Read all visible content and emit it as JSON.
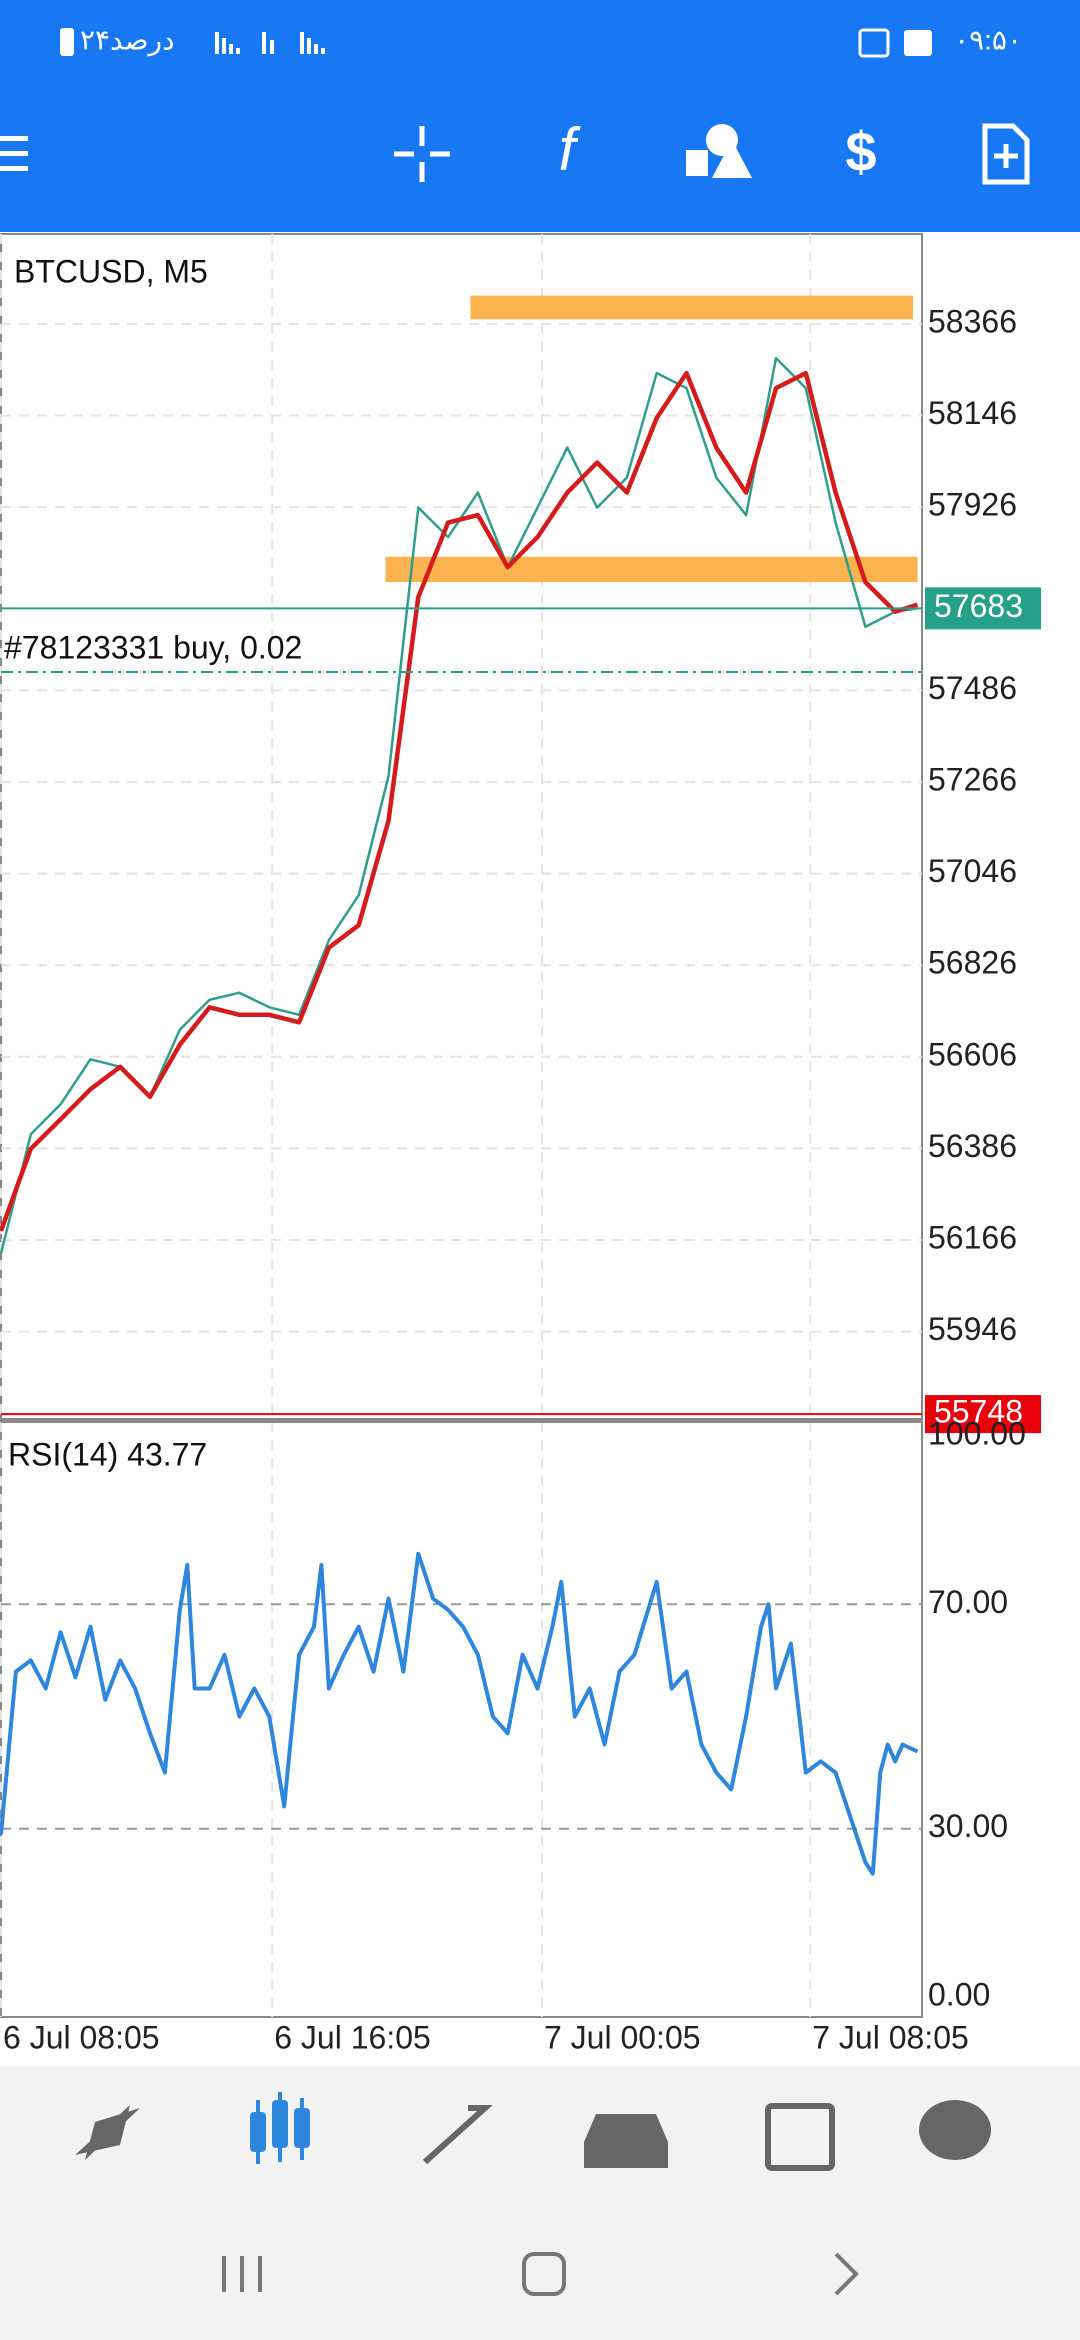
{
  "status_bar": {
    "time": "۰۹:۵۰",
    "battery": "۲۴درصد"
  },
  "toolbar": {
    "function_icon": "f"
  },
  "chart_data": [
    {
      "type": "line",
      "title": "BTCUSD, M5",
      "xlim": [
        0,
        30.9
      ],
      "xticks": [
        {
          "value": 0,
          "label": "6 Jul 08:05"
        },
        {
          "value": 9.1,
          "label": "6 Jul 16:05"
        },
        {
          "value": 18.15,
          "label": "7 Jul 00:05"
        },
        {
          "value": 27.15,
          "label": "7 Jul 08:05"
        }
      ],
      "ylim": [
        55741,
        58582
      ],
      "yticks": [
        58366,
        58146,
        57926,
        57486,
        57266,
        57046,
        56826,
        56606,
        56386,
        56166,
        55946
      ],
      "grid": true,
      "x": [
        0,
        1,
        2,
        3,
        4,
        5,
        6,
        7,
        8,
        9,
        10,
        11,
        12,
        13,
        14,
        15,
        16,
        17,
        18,
        19,
        20,
        21,
        22,
        23,
        24,
        25,
        26,
        27,
        28,
        29,
        30,
        30.75
      ],
      "series": [
        {
          "color": "#2f9e8c",
          "values": [
            56134,
            56420,
            56492,
            56600,
            56582,
            56510,
            56671,
            56743,
            56760,
            56725,
            56707,
            56886,
            56994,
            57280,
            57925,
            57854,
            57961,
            57782,
            57925,
            58069,
            57925,
            57997,
            58248,
            58212,
            57997,
            57907,
            58284,
            58212,
            57889,
            57639,
            57675,
            57683
          ]
        },
        {
          "color": "#d41c1c",
          "values": [
            56188,
            56385,
            56456,
            56528,
            56582,
            56510,
            56635,
            56725,
            56707,
            56707,
            56689,
            56868,
            56922,
            57173,
            57710,
            57889,
            57907,
            57782,
            57854,
            57961,
            58033,
            57961,
            58140,
            58248,
            58069,
            57961,
            58212,
            58248,
            57961,
            57746,
            57675,
            57692
          ]
        }
      ],
      "zones": [
        {
          "from": 15.75,
          "to": 30.6,
          "ylim": [
            58377,
            58434
          ],
          "color": "#fbb34f"
        },
        {
          "from": 12.9,
          "to": 30.75,
          "ylim": [
            57746,
            57807
          ],
          "color": "#fbb34f"
        }
      ],
      "current_price": 57683,
      "current_color": "#27a08a",
      "order": {
        "label": "#78123331 buy, 0.02",
        "price": 57530
      },
      "low_level": {
        "value": 55748,
        "color": "#e8000b"
      }
    },
    {
      "type": "line",
      "title": "RSI(14) 43.77",
      "xlim": [
        0,
        30.9
      ],
      "ylim": [
        0,
        100
      ],
      "yticks": [
        {
          "value": 100,
          "label": "100.00"
        },
        {
          "value": 70,
          "label": "70.00"
        },
        {
          "value": 30,
          "label": "30.00"
        },
        {
          "value": 0,
          "label": "0.00"
        }
      ],
      "x": [
        0,
        0.5,
        1,
        1.5,
        2,
        2.5,
        3,
        3.5,
        4,
        4.5,
        5,
        5.5,
        6,
        6.25,
        6.5,
        7,
        7.5,
        8,
        8.5,
        9,
        9.5,
        10,
        10.5,
        10.75,
        11,
        11.5,
        12,
        12.5,
        13,
        13.5,
        14,
        14.5,
        15,
        15.5,
        16,
        16.5,
        17,
        17.5,
        18,
        18.5,
        18.8,
        19.25,
        19.75,
        20.25,
        20.75,
        21.25,
        22,
        22.5,
        23,
        23.5,
        24,
        24.5,
        25,
        25.5,
        25.75,
        26,
        26.5,
        27,
        27.5,
        28,
        28.5,
        29,
        29.25,
        29.5,
        29.75,
        30,
        30.25,
        30.75
      ],
      "series": [
        {
          "color": "#2f86dd",
          "values": [
            29,
            58,
            60,
            55,
            65,
            57,
            66,
            53,
            60,
            55,
            47,
            40,
            69,
            77,
            55,
            55,
            61,
            50,
            55,
            50,
            34,
            61,
            66,
            77,
            55,
            61,
            66,
            58,
            71,
            58,
            79,
            71,
            69,
            66,
            61,
            50,
            47,
            61,
            55,
            66,
            74,
            50,
            55,
            45,
            58,
            61,
            74,
            55,
            58,
            45,
            40,
            37,
            50,
            66,
            70,
            55,
            63,
            40,
            42,
            40,
            32,
            24,
            22,
            40,
            45,
            42,
            45,
            43.77
          ]
        }
      ]
    }
  ]
}
